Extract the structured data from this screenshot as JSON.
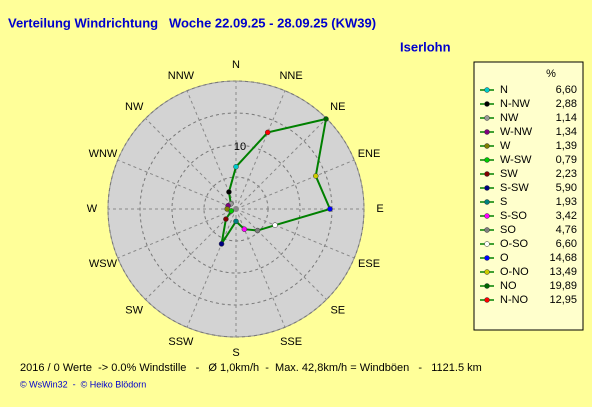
{
  "chart_data": {
    "type": "radar",
    "title": "Verteilung Windrichtung   Woche 22.09.25 - 28.09.25 (KW39)",
    "subtitle": "Iserlohn",
    "directions": [
      "N",
      "NNE",
      "NE",
      "ENE",
      "E",
      "ESE",
      "SE",
      "SSE",
      "S",
      "SSW",
      "SW",
      "WSW",
      "W",
      "WNW",
      "NW",
      "NNW"
    ],
    "unit": "%",
    "categories": [
      "N",
      "N-NW",
      "NW",
      "W-NW",
      "W",
      "W-SW",
      "SW",
      "S-SW",
      "S",
      "S-SO",
      "SO",
      "O-SO",
      "O",
      "O-NO",
      "NO",
      "N-NO"
    ],
    "values": [
      6.6,
      2.88,
      1.14,
      1.34,
      1.39,
      0.79,
      2.23,
      5.9,
      1.93,
      3.42,
      4.76,
      6.6,
      14.68,
      13.49,
      19.89,
      12.95
    ],
    "value_labels": [
      "6,60",
      "2,88",
      "1,14",
      "1,34",
      "1,39",
      "0,79",
      "2,23",
      "5,90",
      "1,93",
      "3,42",
      "4,76",
      "6,60",
      "14,68",
      "13,49",
      "19,89",
      "12,95"
    ],
    "marker_colors": [
      "#00cccc",
      "#000000",
      "#999999",
      "#800080",
      "#808000",
      "#00cc00",
      "#800000",
      "#000080",
      "#008080",
      "#ff00ff",
      "#808080",
      "#ffffff",
      "#0000ff",
      "#cccc00",
      "#006600",
      "#ff0000"
    ],
    "color": "#008000",
    "rlim": [
      0,
      20
    ],
    "rticks": [
      10
    ],
    "rgrid": [
      5,
      10,
      15,
      20
    ],
    "footer": "2016 / 0 Werte  -> 0.0% Windstille   -   Ø 1,0km/h  -  Max. 42,8km/h = Windböen   -   1121.5 km",
    "credit": "© WsWin32  -  © Heiko Blödorn"
  }
}
